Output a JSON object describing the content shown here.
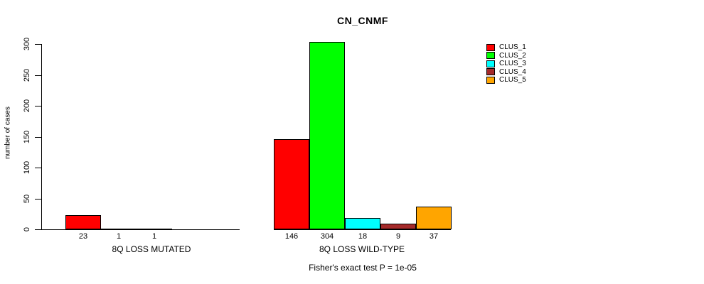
{
  "chart_data": {
    "type": "bar",
    "title": "CN_CNMF",
    "ylabel": "number of cases",
    "xlabel": "",
    "ylim": [
      0,
      300
    ],
    "yticks": [
      0,
      50,
      100,
      150,
      200,
      250,
      300
    ],
    "grid": false,
    "legend_position": "top-right",
    "legend": [
      {
        "label": "CLUS_1",
        "color": "#FF0000"
      },
      {
        "label": "CLUS_2",
        "color": "#00FF00"
      },
      {
        "label": "CLUS_3",
        "color": "#00FFFF"
      },
      {
        "label": "CLUS_4",
        "color": "#A52A2A"
      },
      {
        "label": "CLUS_5",
        "color": "#FFA500"
      }
    ],
    "groups": [
      {
        "label": "8Q LOSS MUTATED",
        "categories": [
          "CLUS_1",
          "CLUS_2",
          "CLUS_3"
        ],
        "values": [
          23,
          1,
          1
        ],
        "colors": [
          "#FF0000",
          "#00FF00",
          "#00FFFF"
        ]
      },
      {
        "label": "8Q LOSS WILD-TYPE",
        "categories": [
          "CLUS_1",
          "CLUS_2",
          "CLUS_3",
          "CLUS_4",
          "CLUS_5"
        ],
        "values": [
          146,
          304,
          18,
          9,
          37
        ],
        "colors": [
          "#FF0000",
          "#00FF00",
          "#00FFFF",
          "#A52A2A",
          "#FFA500"
        ]
      }
    ],
    "footnote": "Fisher's exact test P = 1e-05"
  }
}
